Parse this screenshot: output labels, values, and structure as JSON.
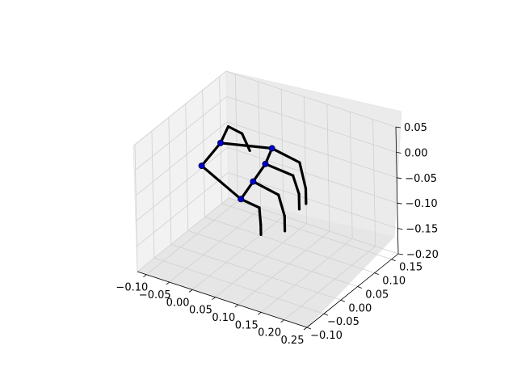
{
  "chart_data": {
    "type": "3d-line-scatter",
    "title": "",
    "xlabel": "",
    "ylabel": "",
    "zlabel": "",
    "grid": true,
    "xlim": [
      -0.12,
      0.25
    ],
    "ylim": [
      -0.1,
      0.17
    ],
    "zlim": [
      -0.2,
      0.05
    ],
    "x_ticks": [
      "−0.10",
      "−0.05",
      "0.00",
      "0.05",
      "0.10",
      "0.15",
      "0.20",
      "0.25"
    ],
    "y_ticks": [
      "−0.10",
      "−0.05",
      "0.00",
      "0.05",
      "0.10",
      "0.15"
    ],
    "z_ticks": [
      "−0.20",
      "−0.15",
      "−0.10",
      "−0.05",
      "0.00",
      "0.05"
    ],
    "joint_color": "#0000cc",
    "bone_color": "#000000",
    "joints": [
      {
        "id": "wrist",
        "x": -0.095,
        "y": 0.06,
        "z": -0.07
      },
      {
        "id": "thumb1",
        "x": -0.06,
        "y": 0.07,
        "z": -0.02
      },
      {
        "id": "thumb2",
        "x": -0.05,
        "y": 0.08,
        "z": 0.01
      },
      {
        "id": "thumb3",
        "x": -0.02,
        "y": 0.08,
        "z": 0.005
      },
      {
        "id": "thumb4",
        "x": 0.0,
        "y": 0.075,
        "z": -0.02
      },
      {
        "id": "index1",
        "x": 0.03,
        "y": 0.1,
        "z": -0.02
      },
      {
        "id": "index2",
        "x": 0.09,
        "y": 0.1,
        "z": -0.03
      },
      {
        "id": "index3",
        "x": 0.11,
        "y": 0.09,
        "z": -0.07
      },
      {
        "id": "index4",
        "x": 0.11,
        "y": 0.09,
        "z": -0.1
      },
      {
        "id": "middle1",
        "x": 0.03,
        "y": 0.08,
        "z": -0.04
      },
      {
        "id": "middle2",
        "x": 0.09,
        "y": 0.08,
        "z": -0.045
      },
      {
        "id": "middle3",
        "x": 0.11,
        "y": 0.07,
        "z": -0.07
      },
      {
        "id": "middle4",
        "x": 0.11,
        "y": 0.07,
        "z": -0.1
      },
      {
        "id": "ring1",
        "x": 0.025,
        "y": 0.05,
        "z": -0.06
      },
      {
        "id": "ring2",
        "x": 0.08,
        "y": 0.05,
        "z": -0.07
      },
      {
        "id": "ring3",
        "x": 0.1,
        "y": 0.04,
        "z": -0.1
      },
      {
        "id": "ring4",
        "x": 0.1,
        "y": 0.04,
        "z": -0.13
      },
      {
        "id": "pinky1",
        "x": 0.02,
        "y": 0.02,
        "z": -0.08
      },
      {
        "id": "pinky2",
        "x": 0.06,
        "y": 0.02,
        "z": -0.085
      },
      {
        "id": "pinky3",
        "x": 0.07,
        "y": 0.01,
        "z": -0.11
      },
      {
        "id": "pinky4",
        "x": 0.07,
        "y": 0.01,
        "z": -0.13
      }
    ],
    "bones": [
      [
        "wrist",
        "thumb1"
      ],
      [
        "thumb1",
        "thumb2"
      ],
      [
        "thumb2",
        "thumb3"
      ],
      [
        "thumb3",
        "thumb4"
      ],
      [
        "wrist",
        "pinky1"
      ],
      [
        "pinky1",
        "ring1"
      ],
      [
        "ring1",
        "middle1"
      ],
      [
        "middle1",
        "index1"
      ],
      [
        "thumb1",
        "index1"
      ],
      [
        "index1",
        "index2"
      ],
      [
        "index2",
        "index3"
      ],
      [
        "index3",
        "index4"
      ],
      [
        "middle1",
        "middle2"
      ],
      [
        "middle2",
        "middle3"
      ],
      [
        "middle3",
        "middle4"
      ],
      [
        "ring1",
        "ring2"
      ],
      [
        "ring2",
        "ring3"
      ],
      [
        "ring3",
        "ring4"
      ],
      [
        "pinky1",
        "pinky2"
      ],
      [
        "pinky2",
        "pinky3"
      ],
      [
        "pinky3",
        "pinky4"
      ]
    ],
    "marked_joints": [
      "wrist",
      "thumb1",
      "index1",
      "middle1",
      "ring1",
      "pinky1"
    ]
  }
}
